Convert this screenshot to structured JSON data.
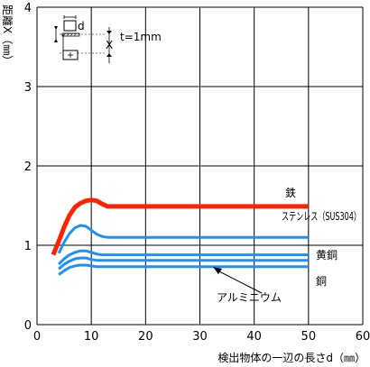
{
  "chart_data": {
    "type": "line",
    "ylabel": "距離X（㎜）",
    "xlabel": "検出物体の一辺の長さd（㎜）",
    "xlim": [
      0,
      60
    ],
    "ylim": [
      0,
      4
    ],
    "x_ticks": [
      "0",
      "10",
      "20",
      "30",
      "40",
      "50",
      "60"
    ],
    "y_ticks": [
      "0",
      "1",
      "2",
      "3",
      "4"
    ],
    "grid": true,
    "inset": {
      "d_label": "d",
      "x_label": "X",
      "thickness": "t=1mm"
    },
    "series": [
      {
        "name": "鉄",
        "color": "#ff2200",
        "width": 5,
        "x": [
          3,
          4,
          5,
          6,
          7,
          8,
          9,
          10,
          11,
          12,
          13,
          50
        ],
        "y": [
          0.88,
          1.05,
          1.23,
          1.38,
          1.48,
          1.53,
          1.56,
          1.57,
          1.56,
          1.52,
          1.49,
          1.49
        ]
      },
      {
        "name": "ステンレス（SUS304）",
        "color": "#1e8fff",
        "width": 3,
        "x": [
          4,
          5,
          6,
          7,
          8,
          9,
          10,
          11,
          12,
          13,
          50
        ],
        "y": [
          0.9,
          1.04,
          1.15,
          1.22,
          1.25,
          1.24,
          1.19,
          1.14,
          1.11,
          1.1,
          1.1
        ]
      },
      {
        "name": "黄銅",
        "color": "#1e8fff",
        "width": 3,
        "x": [
          4,
          5,
          6,
          7,
          8,
          9,
          10,
          11,
          12,
          50
        ],
        "y": [
          0.76,
          0.83,
          0.88,
          0.91,
          0.93,
          0.93,
          0.91,
          0.89,
          0.88,
          0.88
        ]
      },
      {
        "name": "アルミニウム",
        "color": "#1e8fff",
        "width": 3,
        "x": [
          4,
          5,
          6,
          7,
          8,
          9,
          10,
          11,
          50
        ],
        "y": [
          0.7,
          0.76,
          0.8,
          0.83,
          0.84,
          0.84,
          0.82,
          0.81,
          0.81
        ]
      },
      {
        "name": "銅",
        "color": "#1e8fff",
        "width": 3,
        "x": [
          4,
          5,
          6,
          7,
          8,
          9,
          10,
          11,
          50
        ],
        "y": [
          0.63,
          0.68,
          0.72,
          0.74,
          0.75,
          0.75,
          0.74,
          0.73,
          0.73
        ]
      }
    ]
  }
}
